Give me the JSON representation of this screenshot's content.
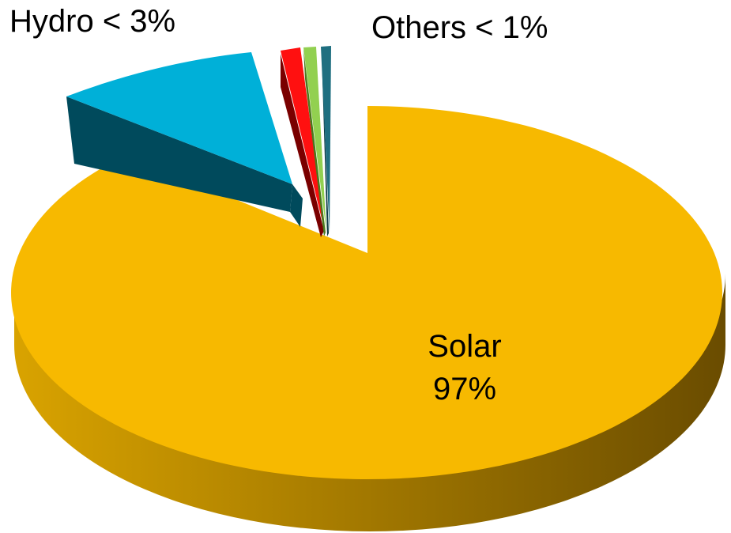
{
  "chart_data": {
    "type": "pie",
    "variant": "3d-exploded",
    "categories": [
      "Solar",
      "Hydro",
      "Red",
      "Green",
      "Others"
    ],
    "values": [
      97,
      2.3,
      0.4,
      0.2,
      0.1
    ],
    "colors": {
      "solar_top": "#F7B900",
      "solar_side_light": "#D9A300",
      "solar_side_dark": "#6A4C00",
      "hydro_top": "#00B0D8",
      "hydro_side": "#004A5C",
      "red_top": "#FF1010",
      "red_side": "#7A0000",
      "green_top": "#92D050",
      "green_side": "#4A7A1C",
      "others_top": "#1F6F80",
      "others_side": "#0C3A44"
    },
    "labels": {
      "solar_name": "Solar",
      "solar_value": "97%",
      "hydro": "Hydro < 3%",
      "others": "Others < 1%"
    },
    "legend": "none"
  }
}
